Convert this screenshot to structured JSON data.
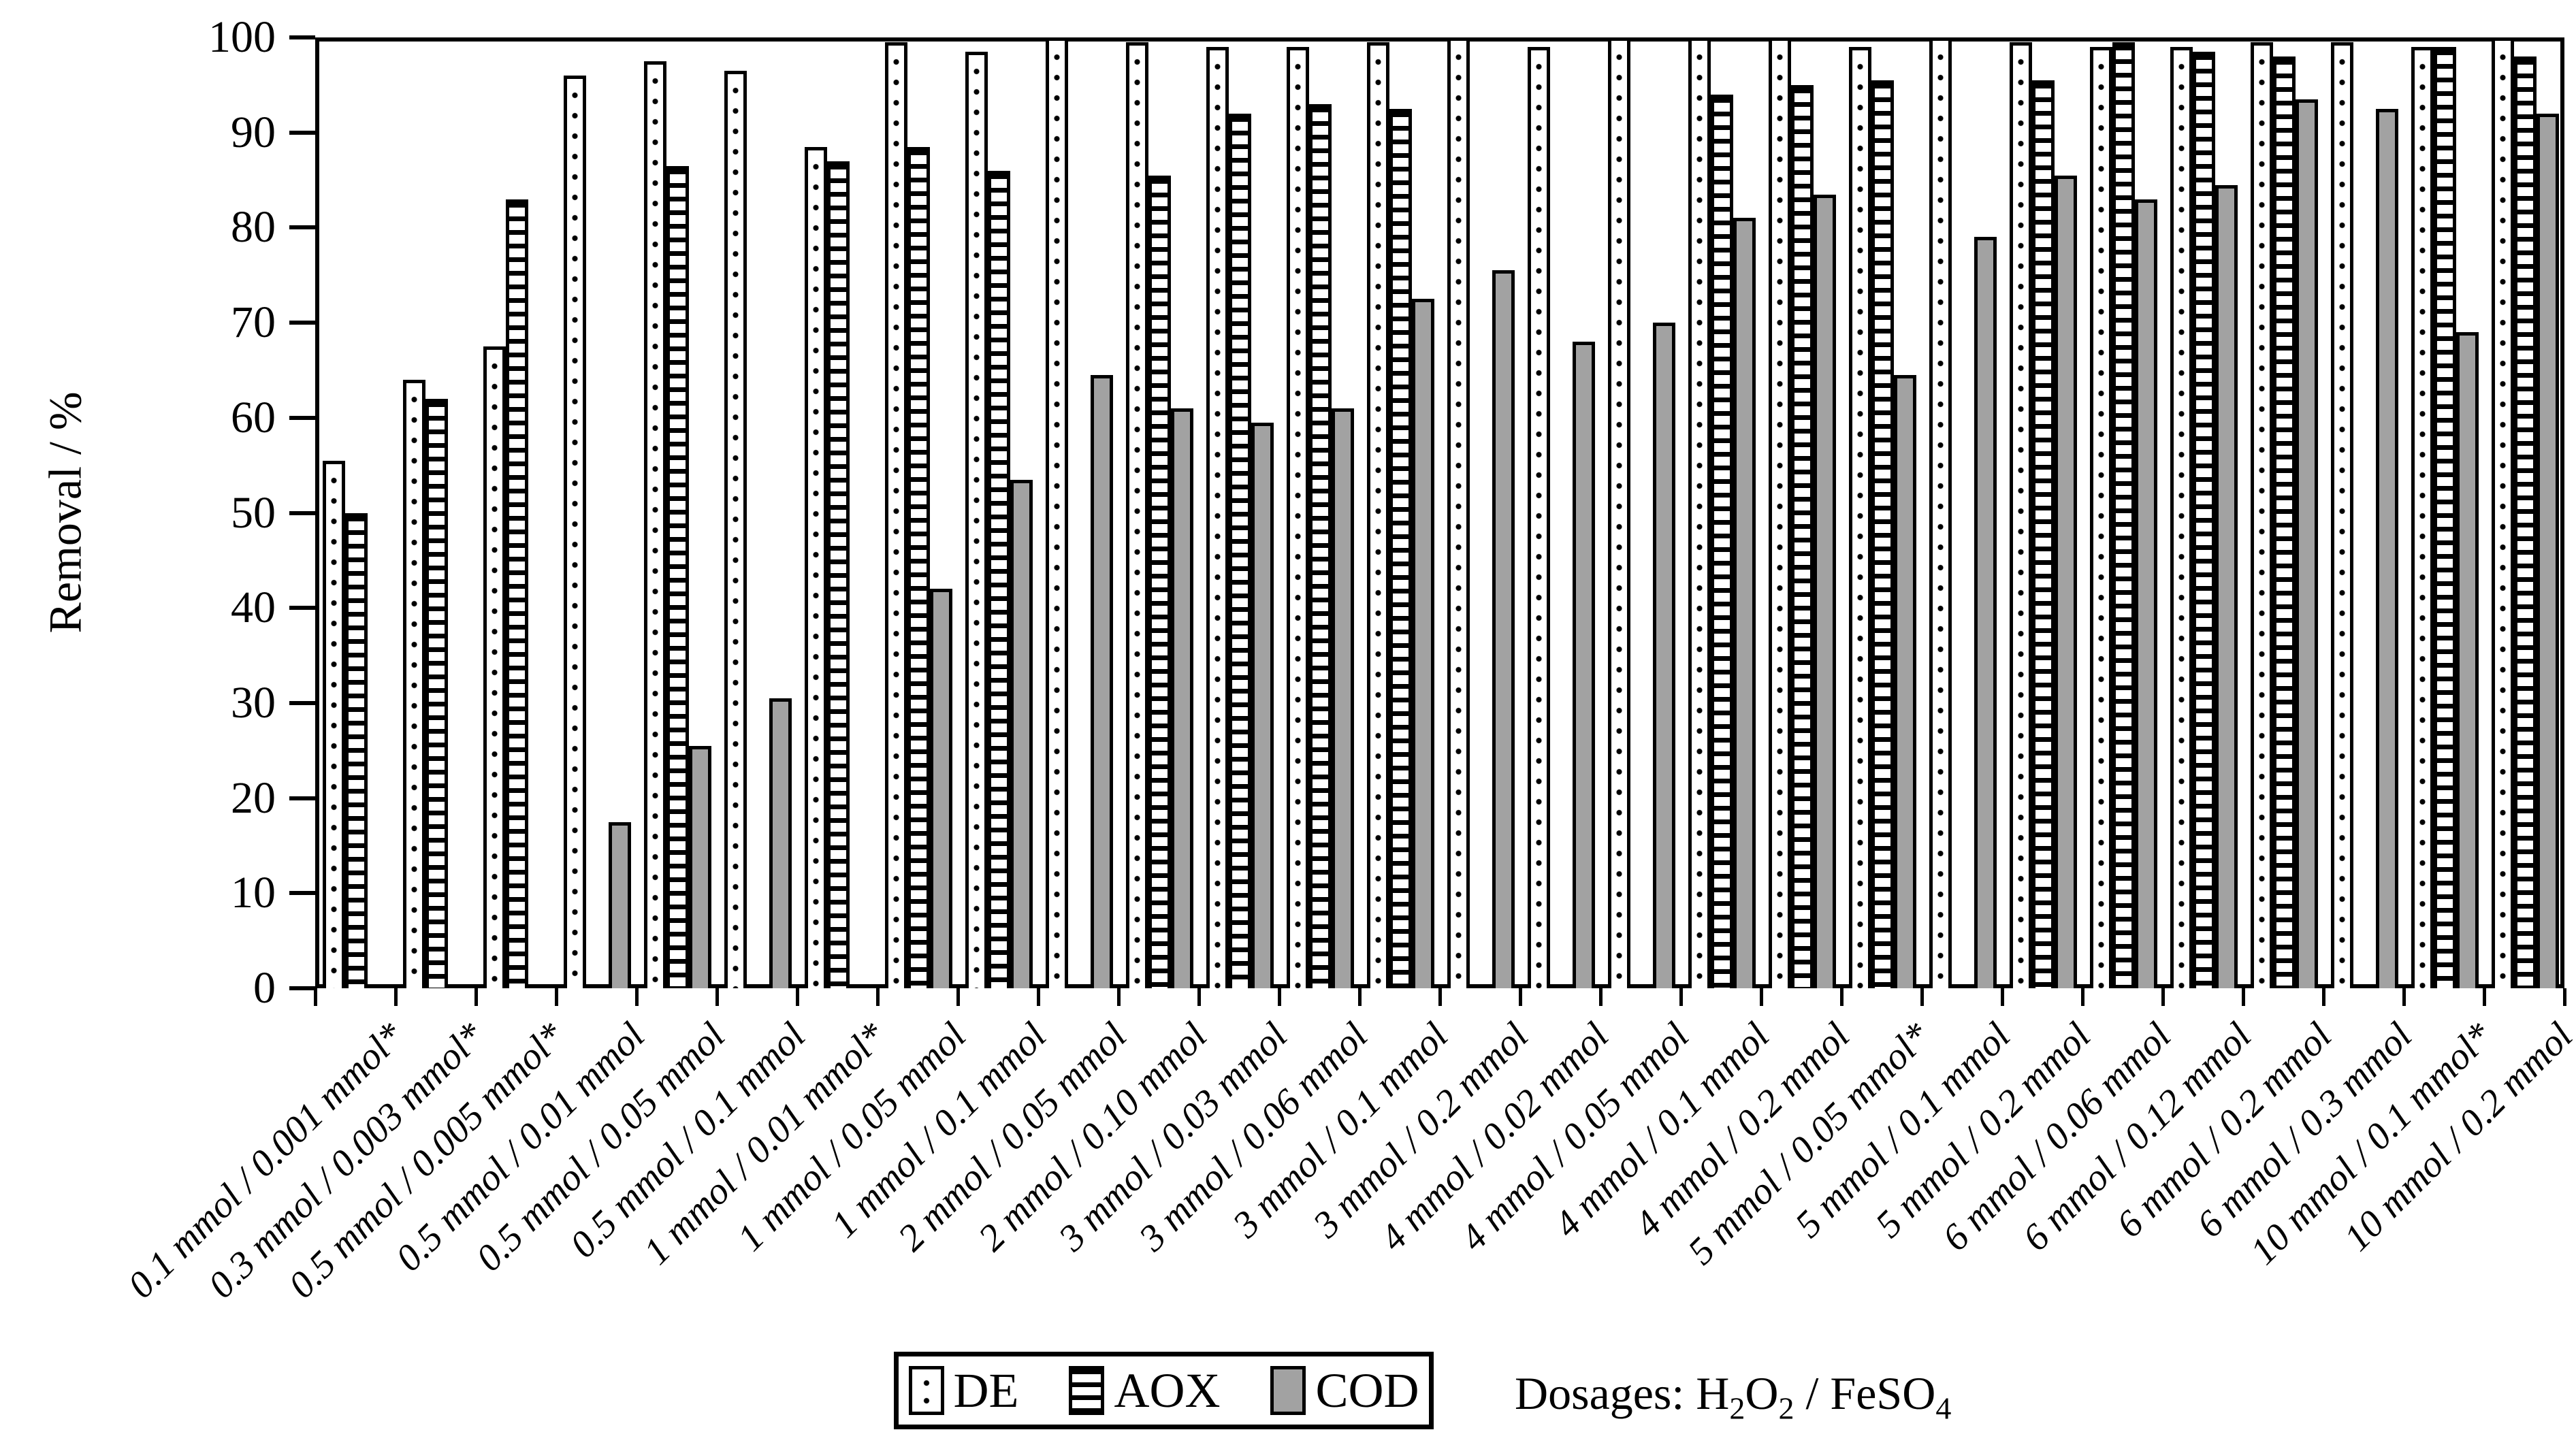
{
  "chart_data": {
    "type": "bar",
    "title": "",
    "ylabel": "Removal / %",
    "xlabel": "Dosages: H2O2 / FeSO4",
    "ylim": [
      0,
      100
    ],
    "y_ticks": [
      100,
      90,
      80,
      70,
      60,
      50,
      40,
      30,
      20,
      10,
      0
    ],
    "grid": false,
    "legend_position": "bottom-center",
    "categories": [
      "0.1 mmol / 0.001 mmol*",
      "0.3 mmol / 0.003 mmol*",
      "0.5 mmol / 0.005 mmol*",
      "0.5 mmol / 0.01 mmol",
      "0.5 mmol / 0.05 mmol",
      "0.5 mmol / 0.1 mmol",
      "1 mmol / 0.01 mmol*",
      "1 mmol / 0.05 mmol",
      "1 mmol / 0.1 mmol",
      "2 mmol / 0.05 mmol",
      "2 mmol / 0.10 mmol",
      "3 mmol / 0.03 mmol",
      "3 mmol / 0.06 mmol",
      "3 mmol / 0.1 mmol",
      "3 mmol / 0.2 mmol",
      "4 mmol / 0.02 mmol",
      "4 mmol / 0.05 mmol",
      "4 mmol / 0.1 mmol",
      "4 mmol / 0.2 mmol",
      "5 mmol / 0.05 mmol*",
      "5 mmol / 0.1 mmol",
      "5 mmol / 0.2 mmol",
      "6 mmol / 0.06 mmol",
      "6 mmol / 0.12 mmol",
      "6 mmol / 0.2 mmol",
      "6 mmol / 0.3 mmol",
      "10 mmol / 0.1 mmol*",
      "10 mmol / 0.2 mmol"
    ],
    "series": [
      {
        "name": "DE",
        "pattern": "dotted-white",
        "values": [
          55.5,
          64,
          67.5,
          96,
          97.5,
          96.5,
          88.5,
          99.5,
          98.5,
          100,
          99.5,
          99,
          99,
          99.5,
          100,
          99,
          100,
          100,
          100,
          99,
          100,
          99.5,
          99,
          99,
          99.5,
          99.5,
          99,
          100
        ]
      },
      {
        "name": "AOX",
        "pattern": "horizontal-stripes-white",
        "values": [
          50,
          62,
          83,
          null,
          86.5,
          null,
          87,
          88.5,
          86,
          null,
          85.5,
          92,
          93,
          92.5,
          null,
          null,
          null,
          94,
          95,
          95.5,
          null,
          95.5,
          99.5,
          98.5,
          98,
          null,
          99,
          98
        ]
      },
      {
        "name": "COD",
        "pattern": "solid-gray",
        "values": [
          null,
          null,
          null,
          17.5,
          25.5,
          30.5,
          null,
          42,
          53.5,
          64.5,
          61,
          59.5,
          61,
          72.5,
          75.5,
          68,
          70,
          81,
          83.5,
          64.5,
          79,
          85.5,
          83,
          84.5,
          93.5,
          92.5,
          69,
          92
        ]
      }
    ]
  },
  "legend": {
    "items": [
      {
        "label": "DE"
      },
      {
        "label": "AOX"
      },
      {
        "label": "COD"
      }
    ]
  },
  "caption": {
    "prefix": "Dosages: ",
    "h": "H",
    "h_sub": "2",
    "o": "O",
    "o_sub": "2",
    "sep": " / ",
    "feso": "FeSO",
    "feso_sub": "4"
  },
  "colors": {
    "bar_outline": "#000000",
    "cod_fill": "#a2a2a2",
    "background": "#ffffff"
  }
}
